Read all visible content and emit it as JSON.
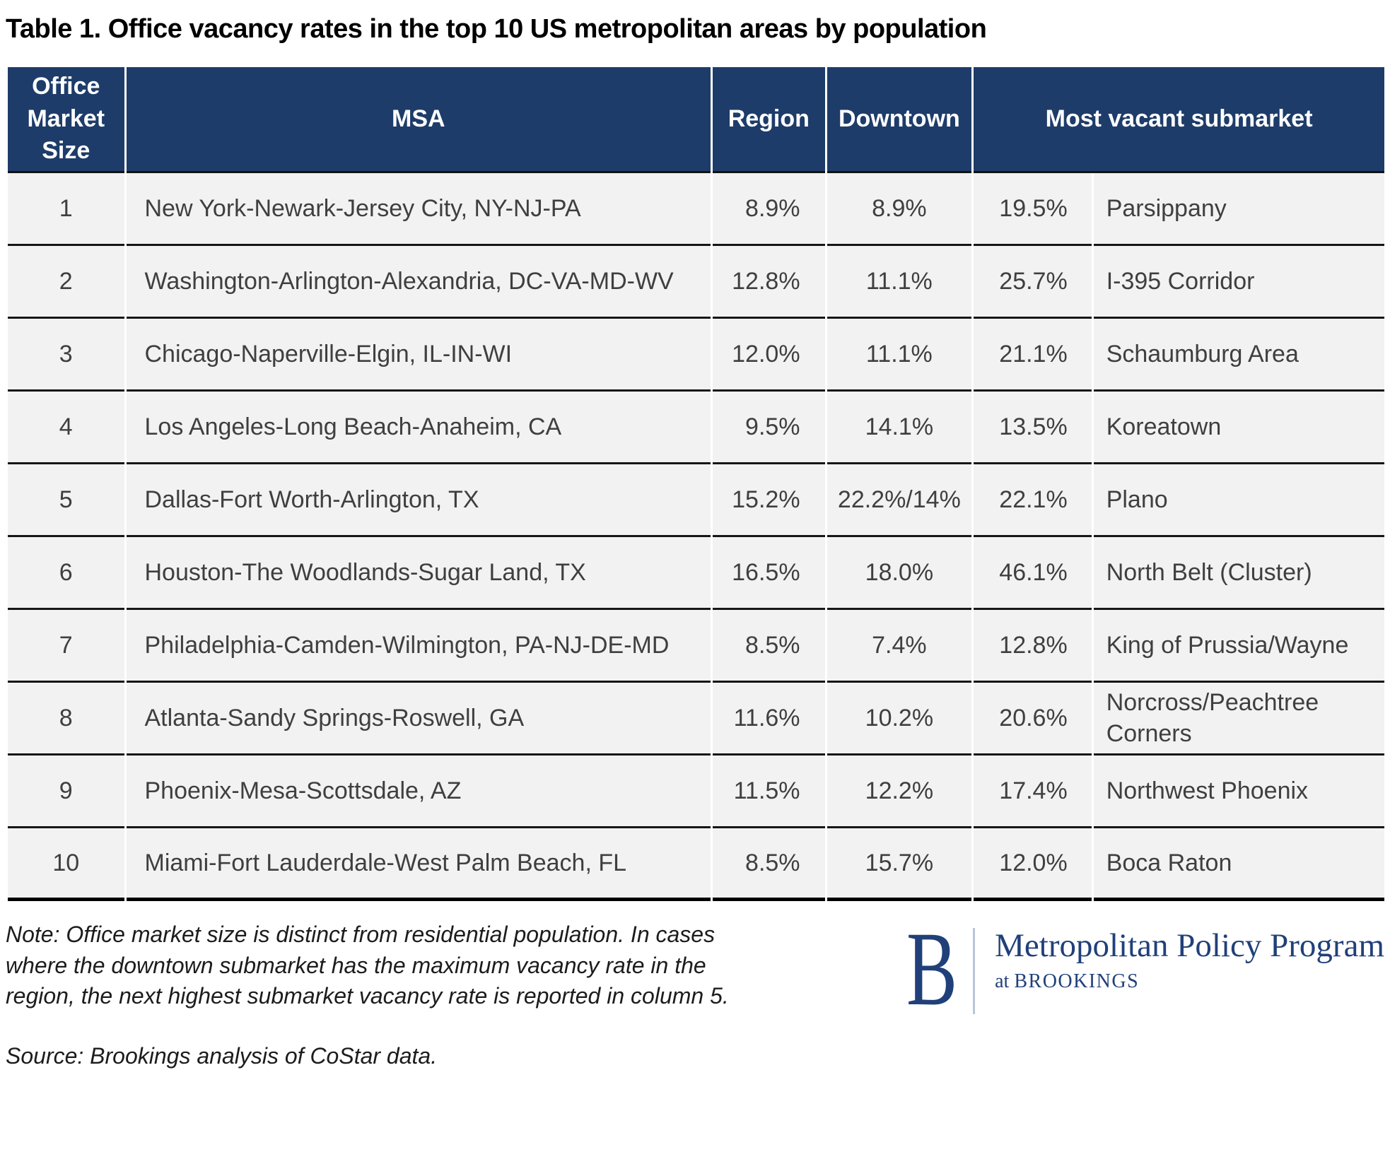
{
  "title": "Table 1. Office vacancy rates in the top 10 US metropolitan areas by population",
  "colors": {
    "header_bg": "#1e3c69",
    "row_bg": "#f2f2f2",
    "logo_blue": "#21407a",
    "divider_blue": "#b9c5d9",
    "border": "#161616"
  },
  "table": {
    "columns": {
      "size": "Office Market Size",
      "msa": "MSA",
      "region": "Region",
      "downtown": "Downtown",
      "most_vacant": "Most vacant submarket"
    },
    "rows": [
      {
        "rank": "1",
        "msa": "New York-Newark-Jersey City, NY-NJ-PA",
        "region": "8.9%",
        "downtown": "8.9%",
        "submarket_rate": "19.5%",
        "submarket": "Parsippany"
      },
      {
        "rank": "2",
        "msa": "Washington-Arlington-Alexandria, DC-VA-MD-WV",
        "region": "12.8%",
        "downtown": "11.1%",
        "submarket_rate": "25.7%",
        "submarket": "I-395 Corridor"
      },
      {
        "rank": "3",
        "msa": "Chicago-Naperville-Elgin, IL-IN-WI",
        "region": "12.0%",
        "downtown": "11.1%",
        "submarket_rate": "21.1%",
        "submarket": "Schaumburg Area"
      },
      {
        "rank": "4",
        "msa": "Los Angeles-Long Beach-Anaheim, CA",
        "region": "9.5%",
        "downtown": "14.1%",
        "submarket_rate": "13.5%",
        "submarket": "Koreatown"
      },
      {
        "rank": "5",
        "msa": "Dallas-Fort Worth-Arlington, TX",
        "region": "15.2%",
        "downtown": "22.2%/14%",
        "submarket_rate": "22.1%",
        "submarket": "Plano"
      },
      {
        "rank": "6",
        "msa": "Houston-The Woodlands-Sugar Land, TX",
        "region": "16.5%",
        "downtown": "18.0%",
        "submarket_rate": "46.1%",
        "submarket": "North Belt (Cluster)"
      },
      {
        "rank": "7",
        "msa": "Philadelphia-Camden-Wilmington, PA-NJ-DE-MD",
        "region": "8.5%",
        "downtown": "7.4%",
        "submarket_rate": "12.8%",
        "submarket": "King of Prussia/Wayne"
      },
      {
        "rank": "8",
        "msa": "Atlanta-Sandy Springs-Roswell, GA",
        "region": "11.6%",
        "downtown": "10.2%",
        "submarket_rate": "20.6%",
        "submarket": "Norcross/Peachtree Corners"
      },
      {
        "rank": "9",
        "msa": "Phoenix-Mesa-Scottsdale, AZ",
        "region": "11.5%",
        "downtown": "12.2%",
        "submarket_rate": "17.4%",
        "submarket": "Northwest Phoenix"
      },
      {
        "rank": "10",
        "msa": "Miami-Fort Lauderdale-West Palm Beach, FL",
        "region": "8.5%",
        "downtown": "15.7%",
        "submarket_rate": "12.0%",
        "submarket": "Boca Raton"
      }
    ]
  },
  "footer": {
    "note_lines": [
      "Note: Office market size is distinct from residential population. In cases",
      "where the downtown submarket has the maximum vacancy rate in the",
      "region, the next highest submarket vacancy rate is reported in column 5."
    ],
    "source": "Source: Brookings analysis of CoStar data.",
    "logo": {
      "mark": "B",
      "program": "Metropolitan Policy Program",
      "at": "at",
      "org": "BROOKINGS"
    }
  }
}
